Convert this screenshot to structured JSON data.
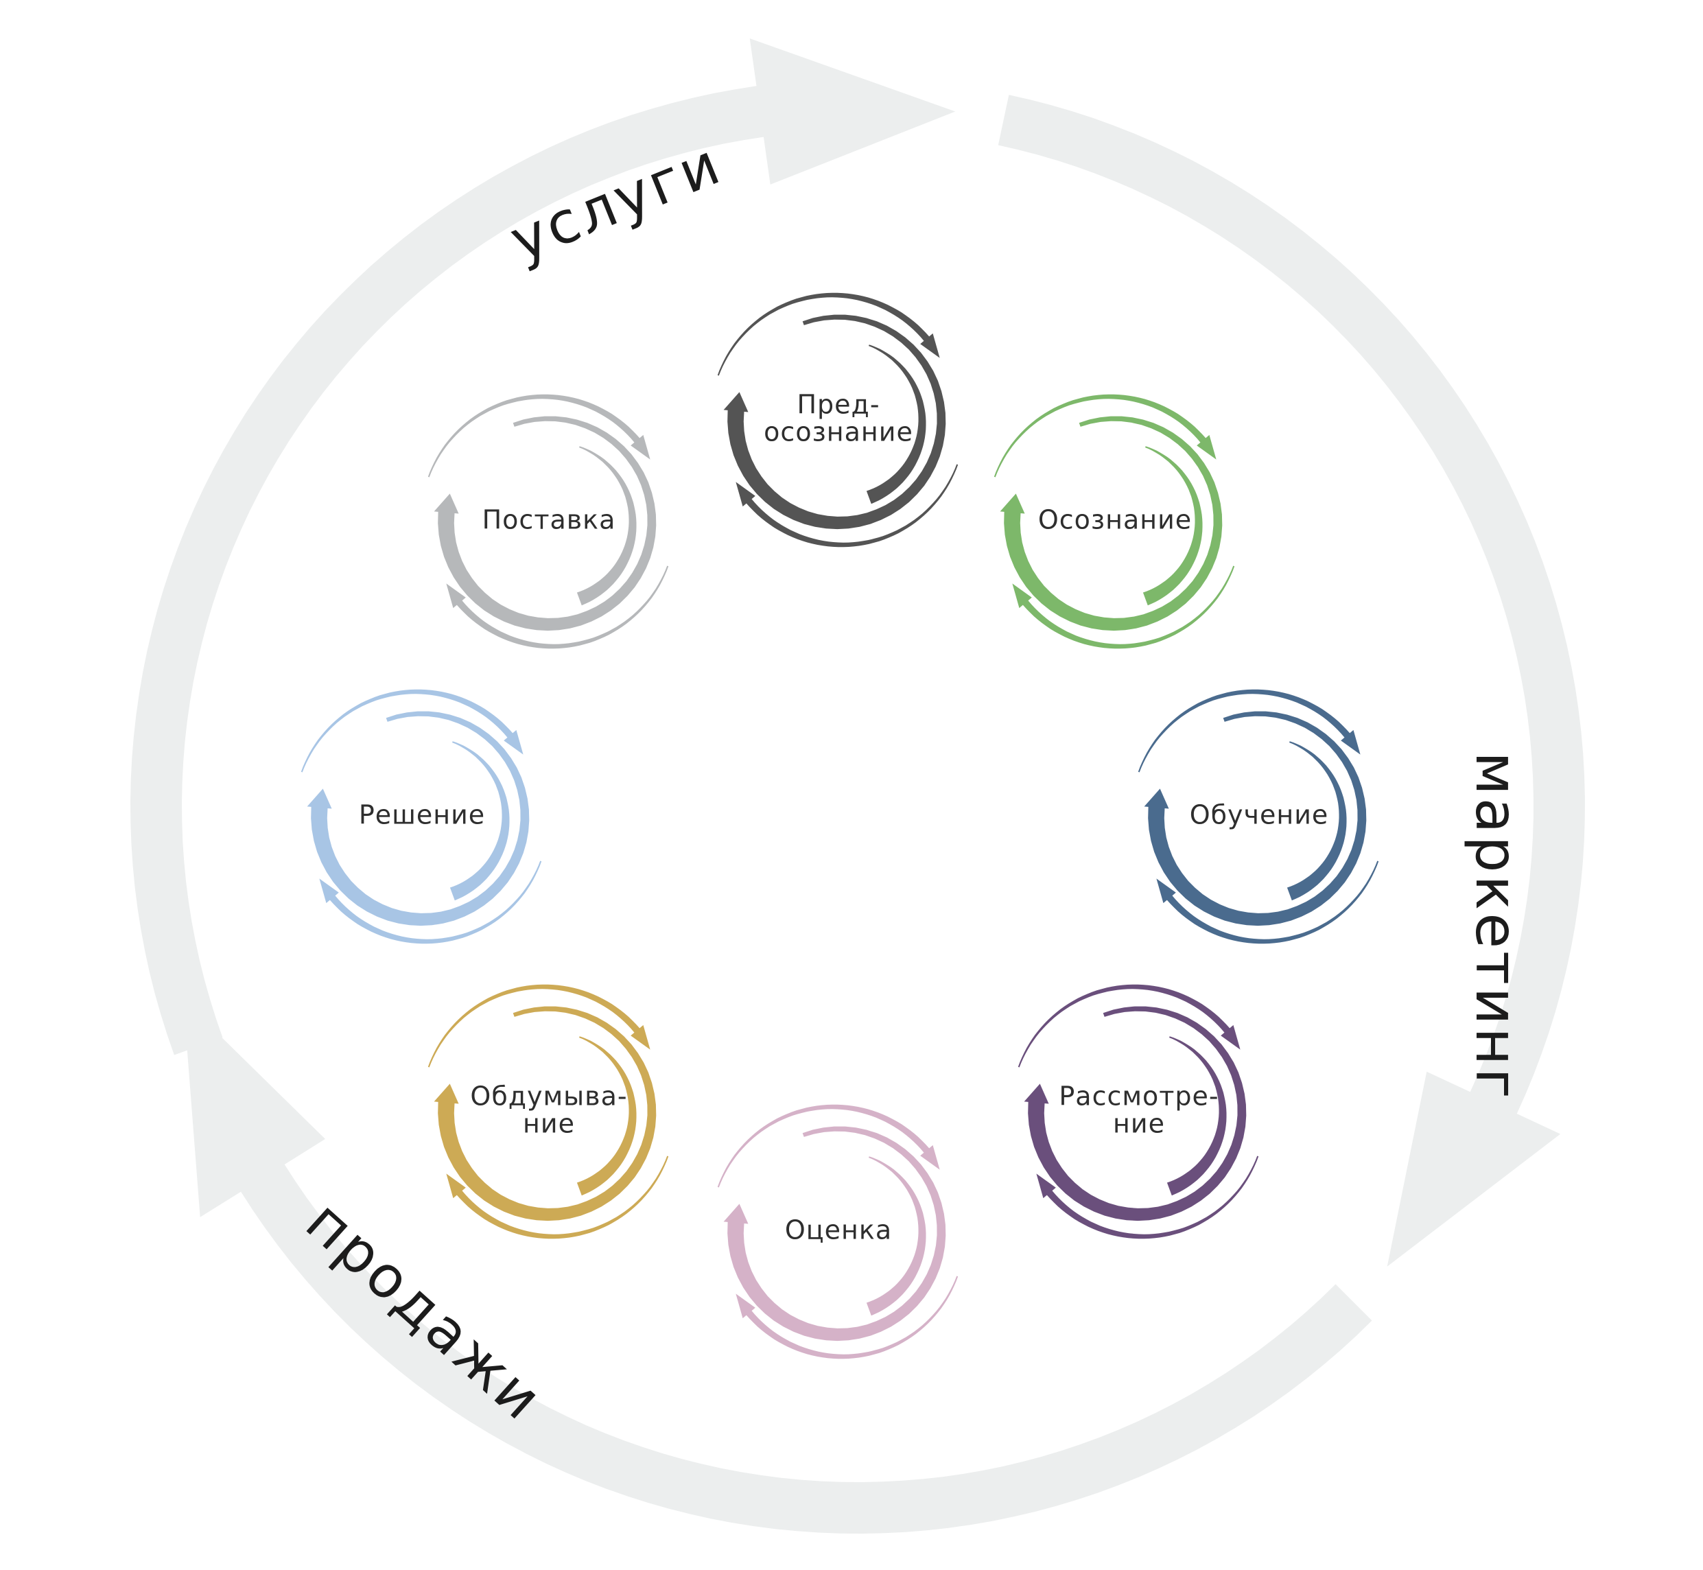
{
  "outer_cycle": {
    "arrow_color": "#eceeee",
    "segments": [
      {
        "id": "services",
        "label": "услуги"
      },
      {
        "id": "marketing",
        "label": "маркетинг"
      },
      {
        "id": "sales",
        "label": "продажи"
      }
    ]
  },
  "stages": [
    {
      "id": "pre-awareness",
      "lines": [
        "Пред-",
        "осознание"
      ],
      "color": "#545454"
    },
    {
      "id": "awareness",
      "lines": [
        "Осознание"
      ],
      "color": "#7db86a"
    },
    {
      "id": "learning",
      "lines": [
        "Обучение"
      ],
      "color": "#4a6b8e"
    },
    {
      "id": "consideration",
      "lines": [
        "Рассмотре-",
        "ние"
      ],
      "color": "#6a4f7c"
    },
    {
      "id": "evaluation",
      "lines": [
        "Оценка"
      ],
      "color": "#d5b2c8"
    },
    {
      "id": "deliberation",
      "lines": [
        "Обдумыва-",
        "ние"
      ],
      "color": "#cdaa55"
    },
    {
      "id": "decision",
      "lines": [
        "Решение"
      ],
      "color": "#a8c5e5"
    },
    {
      "id": "delivery",
      "lines": [
        "Поставка"
      ],
      "color": "#b6b8ba"
    }
  ]
}
